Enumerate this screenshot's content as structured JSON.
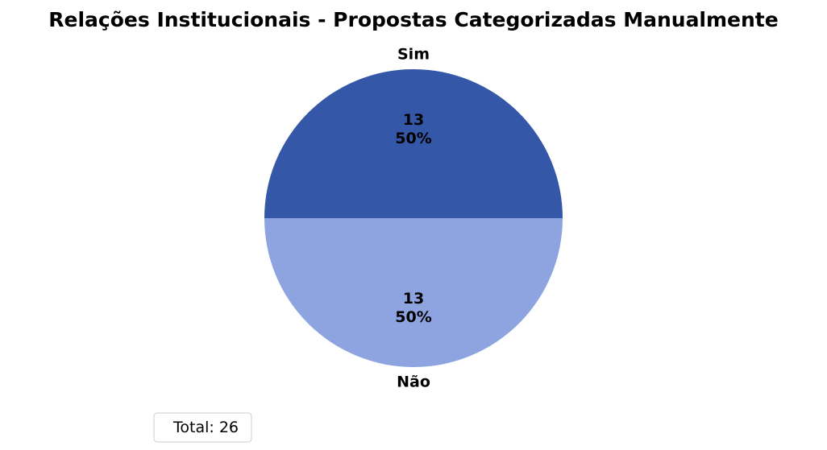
{
  "chart_data": {
    "type": "pie",
    "title": "Relações Institucionais - Propostas Categorizadas Manualmente",
    "categories": [
      "Sim",
      "Não"
    ],
    "values": [
      13,
      13
    ],
    "percent_labels": [
      "50%",
      "50%"
    ],
    "colors": [
      "#3557a8",
      "#8da4e1"
    ],
    "start_angle_deg": 0,
    "direction": "counterclockwise",
    "legend": {
      "text": "Total: 26",
      "placement": "bottom-left"
    }
  }
}
